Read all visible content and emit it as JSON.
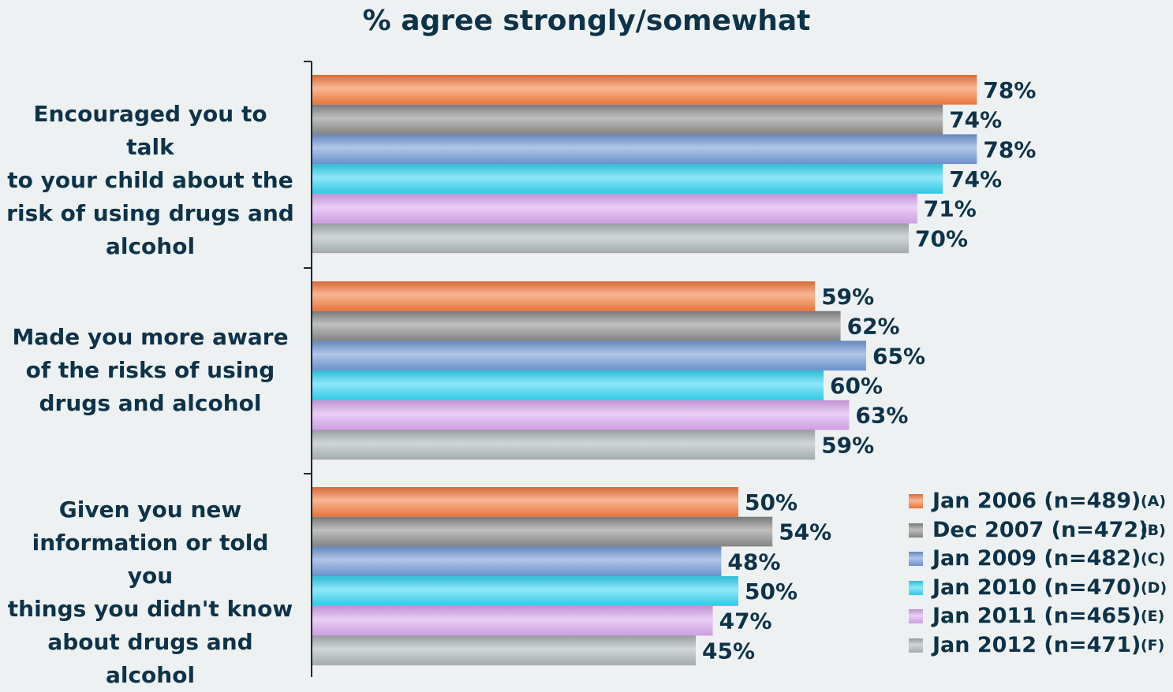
{
  "chart_data": {
    "type": "bar",
    "orientation": "horizontal",
    "title": "% agree strongly/somewhat",
    "categories": [
      "Encouraged you to talk to your child about the risk of using drugs and alcohol",
      "Made you more aware of the risks of using drugs and alcohol",
      "Given you new information or told you things you didn't know about drugs and alcohol"
    ],
    "category_lines": [
      [
        "Encouraged you to talk",
        "to your child about the",
        "risk of using drugs and",
        "alcohol"
      ],
      [
        "Made you more aware",
        "of the risks of using",
        "drugs and alcohol"
      ],
      [
        "Given you new",
        "information or told you",
        "things you didn't know",
        "about drugs and",
        "alcohol"
      ]
    ],
    "series": [
      {
        "name": "Jan 2006 (n=489)",
        "code": "(A)",
        "color": "#f47a3c",
        "values": [
          78,
          59,
          50
        ],
        "labels": [
          "78%",
          "59%",
          "50%"
        ]
      },
      {
        "name": "Dec 2007 (n=472)",
        "code": "(B)",
        "color": "#8a8a8a",
        "values": [
          74,
          62,
          54
        ],
        "labels": [
          "74%",
          "62%",
          "54%"
        ]
      },
      {
        "name": "Jan 2009 (n=482)",
        "code": "(C)",
        "color": "#6f98d6",
        "values": [
          78,
          65,
          48
        ],
        "labels": [
          "78%",
          "65%",
          "48%"
        ]
      },
      {
        "name": "Jan 2010 (n=470)",
        "code": "(D)",
        "color": "#33d4f2",
        "values": [
          74,
          60,
          50
        ],
        "labels": [
          "74%",
          "60%",
          "50%"
        ]
      },
      {
        "name": "Jan 2011 (n=465)",
        "code": "(E)",
        "color": "#d9a6ee",
        "values": [
          71,
          63,
          47
        ],
        "labels": [
          "71%",
          "63%",
          "47%"
        ]
      },
      {
        "name": "Jan 2012 (n=471)",
        "code": "(F)",
        "color": "#aab4b8",
        "values": [
          70,
          59,
          45
        ],
        "labels": [
          "70%",
          "59%",
          "45%"
        ]
      }
    ],
    "xlim": [
      0,
      100
    ],
    "legend_position": "bottom-right",
    "grid": false
  }
}
